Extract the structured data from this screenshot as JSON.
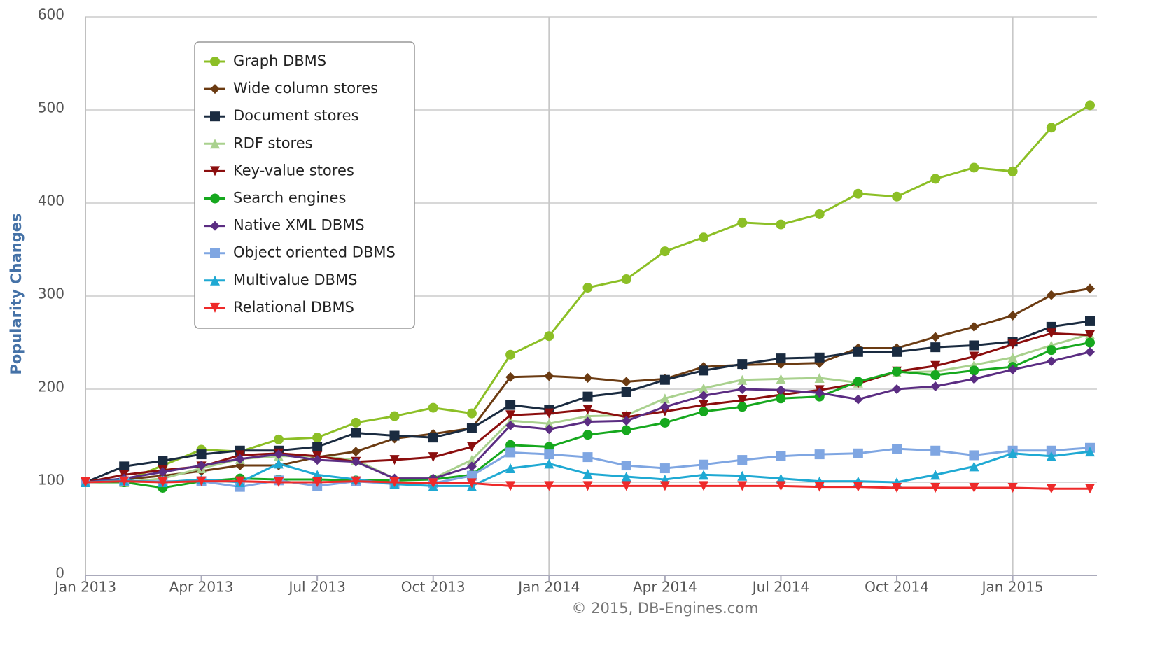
{
  "chart_data": {
    "type": "line",
    "y_label": "Popularity Changes",
    "credit": "© 2015, DB-Engines.com",
    "x": [
      "2013-01",
      "2013-02",
      "2013-03",
      "2013-04",
      "2013-05",
      "2013-06",
      "2013-07",
      "2013-08",
      "2013-09",
      "2013-10",
      "2013-11",
      "2013-12",
      "2014-01",
      "2014-02",
      "2014-03",
      "2014-04",
      "2014-05",
      "2014-06",
      "2014-07",
      "2014-08",
      "2014-09",
      "2014-10",
      "2014-11",
      "2014-12",
      "2015-01",
      "2015-02",
      "2015-03"
    ],
    "xlim": [
      "2013-01",
      "2015-03"
    ],
    "xticks": [
      {
        "value": "2013-01",
        "label": "Jan 2013"
      },
      {
        "value": "2013-04",
        "label": "Apr 2013"
      },
      {
        "value": "2013-07",
        "label": "Jul 2013"
      },
      {
        "value": "2013-10",
        "label": "Oct 2013"
      },
      {
        "value": "2014-01",
        "label": "Jan 2014"
      },
      {
        "value": "2014-04",
        "label": "Apr 2014"
      },
      {
        "value": "2014-07",
        "label": "Jul 2014"
      },
      {
        "value": "2014-10",
        "label": "Oct 2014"
      },
      {
        "value": "2015-01",
        "label": "Jan 2015"
      }
    ],
    "ylim": [
      0,
      600
    ],
    "yticks": [
      0,
      100,
      200,
      300,
      400,
      500,
      600
    ],
    "grid": true,
    "legend": "upper left",
    "series": [
      {
        "name": "Graph DBMS",
        "color": "#8cbf26",
        "marker": "circle",
        "values": [
          100,
          101,
          118,
          135,
          133,
          146,
          148,
          164,
          171,
          180,
          174,
          237,
          257,
          309,
          318,
          348,
          363,
          379,
          377,
          388,
          410,
          407,
          426,
          438,
          434,
          481,
          505
        ]
      },
      {
        "name": "Wide column stores",
        "color": "#6b3b12",
        "marker": "diamond",
        "values": [
          100,
          103,
          107,
          112,
          118,
          118,
          127,
          133,
          147,
          152,
          158,
          213,
          214,
          212,
          208,
          211,
          224,
          226,
          227,
          228,
          244,
          244,
          256,
          267,
          279,
          301,
          308
        ]
      },
      {
        "name": "Document stores",
        "color": "#1a2b40",
        "marker": "square",
        "values": [
          100,
          117,
          123,
          130,
          134,
          134,
          138,
          153,
          150,
          148,
          158,
          183,
          178,
          192,
          197,
          210,
          220,
          227,
          233,
          234,
          240,
          240,
          245,
          247,
          251,
          267,
          273
        ]
      },
      {
        "name": "RDF stores",
        "color": "#a9d18e",
        "marker": "triangle-up",
        "values": [
          100,
          100,
          104,
          115,
          125,
          128,
          128,
          124,
          104,
          104,
          124,
          166,
          163,
          171,
          172,
          190,
          201,
          210,
          211,
          212,
          207,
          218,
          219,
          226,
          234,
          247,
          259
        ]
      },
      {
        "name": "Key-value stores",
        "color": "#8b0e0e",
        "marker": "triangle-down",
        "values": [
          100,
          108,
          113,
          117,
          129,
          131,
          128,
          122,
          124,
          127,
          138,
          172,
          174,
          178,
          170,
          176,
          183,
          188,
          194,
          199,
          206,
          219,
          225,
          235,
          248,
          260,
          258
        ]
      },
      {
        "name": "Search engines",
        "color": "#16a81e",
        "marker": "circle",
        "values": [
          100,
          100,
          94,
          101,
          104,
          103,
          103,
          102,
          102,
          103,
          108,
          140,
          138,
          151,
          156,
          164,
          176,
          181,
          190,
          192,
          208,
          219,
          215,
          220,
          224,
          242,
          250
        ]
      },
      {
        "name": "Native XML DBMS",
        "color": "#5b2d82",
        "marker": "diamond",
        "values": [
          100,
          104,
          111,
          118,
          125,
          130,
          124,
          122,
          104,
          104,
          117,
          161,
          157,
          165,
          166,
          181,
          193,
          200,
          199,
          196,
          189,
          200,
          203,
          211,
          221,
          230,
          240
        ]
      },
      {
        "name": "Object oriented DBMS",
        "color": "#7fa6e2",
        "marker": "square",
        "values": [
          100,
          101,
          101,
          101,
          95,
          102,
          96,
          101,
          98,
          99,
          107,
          132,
          130,
          127,
          118,
          115,
          119,
          124,
          128,
          130,
          131,
          136,
          134,
          129,
          134,
          134,
          137
        ]
      },
      {
        "name": "Multivalue DBMS",
        "color": "#1fa9d3",
        "marker": "triangle-up",
        "values": [
          100,
          102,
          100,
          103,
          100,
          120,
          108,
          103,
          98,
          96,
          96,
          115,
          120,
          109,
          106,
          103,
          108,
          107,
          104,
          101,
          101,
          100,
          108,
          117,
          131,
          128,
          133
        ]
      },
      {
        "name": "Relational DBMS",
        "color": "#ee2a2a",
        "marker": "triangle-down",
        "values": [
          100,
          101,
          100,
          101,
          101,
          100,
          100,
          101,
          100,
          99,
          99,
          96,
          96,
          96,
          96,
          96,
          96,
          96,
          96,
          95,
          95,
          94,
          94,
          94,
          94,
          93,
          93
        ]
      }
    ]
  }
}
